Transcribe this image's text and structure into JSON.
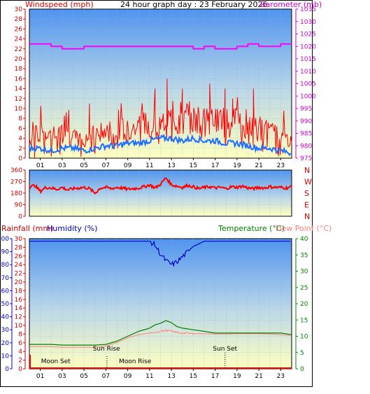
{
  "header": {
    "left_label": "Windspeed (mph)",
    "title": "24 hour graph day : 23 February 2026",
    "right_label": "Barometer (mb)"
  },
  "colors": {
    "wind": "#ff0000",
    "wind_avg": "#1e6fff",
    "barometer": "#ff00ff",
    "direction": "#ff0000",
    "humidity": "#0000cc",
    "temperature": "#008000",
    "dewpoint": "#ff8080",
    "rain": "#ff0000",
    "left_axis": "#cc0000",
    "humidity_axis": "#0000cc",
    "temp_axis": "#008000",
    "baro_axis": "#cc00cc"
  },
  "x_axis": {
    "ticks": [
      "01",
      "03",
      "05",
      "07",
      "09",
      "11",
      "13",
      "15",
      "17",
      "19",
      "21",
      "23"
    ]
  },
  "chart_data": [
    {
      "type": "line",
      "name": "wind",
      "ylim_wind": [
        0,
        30
      ],
      "ylim_baro": [
        975,
        1035
      ],
      "wind_ticks": [
        0,
        2,
        4,
        6,
        8,
        10,
        12,
        14,
        16,
        18,
        20,
        22,
        24,
        26,
        28,
        30
      ],
      "baro_ticks": [
        975,
        980,
        985,
        990,
        995,
        1000,
        1005,
        1010,
        1015,
        1020,
        1025,
        1030,
        1035
      ],
      "x": [
        0,
        1,
        2,
        3,
        4,
        5,
        6,
        7,
        8,
        9,
        10,
        11,
        12,
        13,
        14,
        15,
        16,
        17,
        18,
        19,
        20,
        21,
        22,
        23,
        24
      ],
      "series": [
        {
          "name": "Windspeed",
          "values": [
            4,
            5,
            4,
            5,
            4,
            4,
            5,
            5,
            6,
            6,
            6,
            7,
            7,
            8,
            8,
            8,
            7,
            8,
            7,
            7,
            6,
            6,
            5,
            5,
            3
          ]
        },
        {
          "name": "Windspeed average",
          "values": [
            2,
            2,
            1.5,
            2,
            2,
            1.5,
            2,
            2.5,
            2.5,
            3,
            3,
            3.5,
            4,
            4,
            3.5,
            4,
            3.5,
            3.5,
            3,
            3,
            2.5,
            2,
            2,
            1.5,
            1
          ]
        },
        {
          "name": "Barometer",
          "values": [
            1021,
            1021,
            1020,
            1019,
            1019,
            1020,
            1020,
            1020,
            1020,
            1020,
            1020,
            1020,
            1020,
            1020,
            1020,
            1019,
            1020,
            1019,
            1019,
            1020,
            1021,
            1020,
            1020,
            1021,
            1021
          ]
        }
      ],
      "peaks": [
        [
          11.5,
          14
        ],
        [
          14,
          14
        ],
        [
          16.5,
          15
        ],
        [
          12.6,
          16
        ],
        [
          17.9,
          14
        ],
        [
          20.5,
          14
        ],
        [
          5.5,
          11
        ],
        [
          18.6,
          12
        ]
      ]
    },
    {
      "type": "line",
      "name": "wind-direction",
      "right_labels": [
        "N",
        "W",
        "S",
        "E",
        "N"
      ],
      "left_ticks": [
        0,
        90,
        180,
        270,
        360
      ],
      "ylim": [
        0,
        360
      ],
      "x": [
        0,
        0.5,
        1,
        1.5,
        2,
        2.5,
        3,
        3.5,
        4,
        4.5,
        5,
        5.5,
        6,
        6.5,
        7,
        7.5,
        8,
        8.5,
        9,
        9.5,
        10,
        10.5,
        11,
        11.5,
        12,
        12.5,
        13,
        13.5,
        14,
        14.5,
        15,
        15.5,
        16,
        16.5,
        17,
        17.5,
        18,
        18.5,
        19,
        19.5,
        20,
        20.5,
        21,
        21.5,
        22,
        22.5,
        23,
        23.5,
        24
      ],
      "values": [
        230,
        240,
        195,
        225,
        220,
        210,
        225,
        205,
        215,
        220,
        225,
        215,
        180,
        220,
        225,
        215,
        225,
        220,
        210,
        215,
        220,
        230,
        245,
        220,
        250,
        300,
        245,
        235,
        225,
        240,
        230,
        215,
        225,
        230,
        220,
        225,
        215,
        230,
        225,
        235,
        220,
        215,
        225,
        220,
        230,
        225,
        225,
        220,
        230
      ]
    },
    {
      "type": "line",
      "name": "temperature",
      "left_labels_rain": "Rainfall (mm)",
      "left_labels_humidity": "Humidity (%)",
      "right_label_temp": "Temperature (°C)",
      "right_label_dew": "Dew Point (°C)",
      "rain_ticks": [
        0,
        2,
        4,
        6,
        8,
        10,
        12,
        14,
        16,
        18,
        20,
        22,
        24,
        26,
        28,
        30
      ],
      "humidity_ticks": [
        0,
        10,
        20,
        30,
        40,
        50,
        60,
        70,
        80,
        90,
        100
      ],
      "temp_ticks": [
        0,
        5,
        10,
        15,
        20,
        25,
        30,
        35,
        40
      ],
      "ylim_rain": [
        0,
        30
      ],
      "ylim_humidity": [
        0,
        100
      ],
      "ylim_temp": [
        0,
        40
      ],
      "x": [
        0,
        1,
        2,
        3,
        4,
        5,
        6,
        7,
        8,
        9,
        10,
        11,
        11.5,
        12,
        12.5,
        13,
        13.5,
        14,
        15,
        16,
        17,
        18,
        19,
        20,
        21,
        22,
        23,
        24
      ],
      "series": [
        {
          "name": "Humidity",
          "values": [
            98,
            98,
            98,
            98,
            98,
            98,
            98,
            98,
            98,
            98,
            98,
            98,
            95,
            88,
            83,
            80,
            82,
            86,
            94,
            98,
            98,
            98,
            98,
            98,
            98,
            98,
            98,
            98
          ]
        },
        {
          "name": "Temperature",
          "values": [
            7.5,
            7.5,
            7.5,
            7.3,
            7.3,
            7.3,
            7.3,
            7.5,
            8.5,
            10,
            11.5,
            12.5,
            13.5,
            14,
            14.8,
            14.2,
            13,
            12.5,
            12,
            11.5,
            11,
            11,
            11,
            11,
            11,
            11,
            11,
            10.5
          ]
        },
        {
          "name": "Dew Point",
          "values": [
            6.8,
            6.8,
            6.8,
            6.6,
            6.6,
            6.6,
            6.6,
            7,
            8,
            9.5,
            10.5,
            11,
            11.3,
            11.5,
            11.8,
            11.5,
            11.2,
            11,
            10.8,
            10.8,
            10.7,
            10.7,
            10.8,
            10.8,
            10.8,
            10.7,
            10.5,
            10.2
          ]
        },
        {
          "name": "Rainfall",
          "values": [
            0,
            0,
            0,
            0,
            0,
            0,
            0,
            0,
            0,
            0,
            0,
            0,
            0,
            0,
            0,
            0,
            0,
            0,
            0,
            0,
            0,
            0,
            0,
            0,
            0,
            0,
            0,
            0
          ]
        }
      ],
      "annotations": [
        {
          "text": "Moon Set",
          "x": 0.3
        },
        {
          "text": "Sun Rise",
          "x": 7.05
        },
        {
          "text": "Moon Rise",
          "x": 7.1
        },
        {
          "text": "Sun Set",
          "x": 17.9
        }
      ]
    }
  ]
}
